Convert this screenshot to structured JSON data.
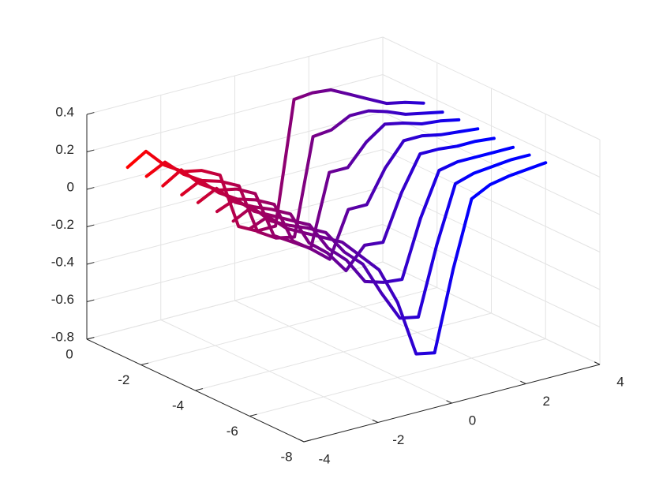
{
  "chart_data": {
    "type": "line3d",
    "x": [
      -4,
      -3.5,
      -3,
      -2.5,
      -2,
      -1.5,
      -1,
      -0.5,
      0,
      0.5,
      1,
      1.5,
      2,
      2.5,
      3,
      3.5,
      4
    ],
    "series": [
      {
        "y": -1.5,
        "values": [
          0.22,
          0.28,
          0.18,
          0.12,
          0.1,
          0.05,
          -0.25,
          -0.3,
          -0.3,
          0.35,
          0.36,
          0.35,
          0.3,
          0.25,
          0.2,
          0.18,
          0.15
        ]
      },
      {
        "y": -2.2,
        "values": [
          0.22,
          0.27,
          0.18,
          0.12,
          0.09,
          0.04,
          -0.23,
          -0.29,
          -0.31,
          0.2,
          0.21,
          0.26,
          0.26,
          0.23,
          0.19,
          0.17,
          0.15
        ]
      },
      {
        "y": -2.8,
        "values": [
          0.21,
          0.27,
          0.17,
          0.11,
          0.09,
          0.04,
          -0.21,
          -0.27,
          -0.33,
          0.05,
          0.05,
          0.16,
          0.23,
          0.21,
          0.18,
          0.17,
          0.15
        ]
      },
      {
        "y": -3.5,
        "values": [
          0.21,
          0.26,
          0.17,
          0.11,
          0.08,
          0.03,
          -0.19,
          -0.26,
          -0.34,
          -0.1,
          -0.1,
          0.07,
          0.19,
          0.19,
          0.17,
          0.16,
          0.15
        ]
      },
      {
        "y": -4.1,
        "values": [
          0.21,
          0.26,
          0.16,
          0.11,
          0.07,
          0.02,
          -0.16,
          -0.24,
          -0.36,
          -0.25,
          -0.26,
          -0.02,
          0.16,
          0.16,
          0.15,
          0.15,
          0.14
        ]
      },
      {
        "y": -4.8,
        "values": [
          0.21,
          0.25,
          0.16,
          0.11,
          0.06,
          0.01,
          -0.14,
          -0.23,
          -0.37,
          -0.4,
          -0.41,
          -0.11,
          0.12,
          0.14,
          0.14,
          0.14,
          0.14
        ]
      },
      {
        "y": -5.4,
        "values": [
          0.2,
          0.25,
          0.15,
          0.1,
          0.06,
          0.01,
          -0.12,
          -0.21,
          -0.39,
          -0.55,
          -0.57,
          -0.21,
          0.09,
          0.12,
          0.13,
          0.14,
          0.14
        ]
      },
      {
        "y": -6,
        "values": [
          0.2,
          0.24,
          0.15,
          0.1,
          0.05,
          0.0,
          -0.1,
          -0.2,
          -0.4,
          -0.7,
          -0.72,
          -0.3,
          0.05,
          0.1,
          0.12,
          0.13,
          0.14
        ]
      }
    ],
    "xlim": [
      -4,
      4
    ],
    "ylim": [
      -8,
      0
    ],
    "zlim": [
      -0.8,
      0.4
    ],
    "xticks": [
      -4,
      -2,
      0,
      2,
      4
    ],
    "yticks": [
      -8,
      -6,
      -4,
      -2,
      0
    ],
    "zticks": [
      -0.8,
      -0.6,
      -0.4,
      -0.2,
      0,
      0.2,
      0.4
    ],
    "grid": true,
    "colormap": [
      "#ff0000",
      "#0000ff"
    ]
  }
}
